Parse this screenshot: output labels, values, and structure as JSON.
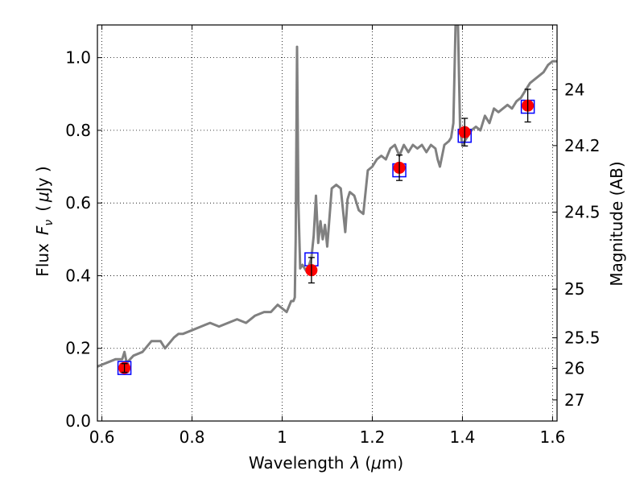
{
  "chart_data": {
    "type": "scatter",
    "xlabel_main": "Wavelength",
    "xlabel_symbol": "λ",
    "xlabel_unit_open": "(",
    "xlabel_unit_mu": "μ",
    "xlabel_unit_rest": "m)",
    "ylabel_main": "Flux",
    "ylabel_symbol": "F",
    "ylabel_sub": "ν",
    "ylabel_unit_open": "(",
    "ylabel_unit_mu": "μ",
    "ylabel_unit_rest": "Jy )",
    "ylabel_right": "Magnitude (AB)",
    "xlim": [
      0.59,
      1.61
    ],
    "ylim": [
      0.0,
      1.09
    ],
    "grid": true,
    "x_ticks": [
      {
        "value": 0.6,
        "label": "0.6"
      },
      {
        "value": 0.8,
        "label": "0.8"
      },
      {
        "value": 1.0,
        "label": "1"
      },
      {
        "value": 1.2,
        "label": "1.2"
      },
      {
        "value": 1.4,
        "label": "1.4"
      },
      {
        "value": 1.6,
        "label": "1.6"
      }
    ],
    "y_ticks": [
      {
        "value": 0.0,
        "label": "0.0"
      },
      {
        "value": 0.2,
        "label": "0.2"
      },
      {
        "value": 0.4,
        "label": "0.4"
      },
      {
        "value": 0.6,
        "label": "0.6"
      },
      {
        "value": 0.8,
        "label": "0.8"
      },
      {
        "value": 1.0,
        "label": "1.0"
      }
    ],
    "right_ticks": [
      {
        "flux": 0.912,
        "label": "24"
      },
      {
        "flux": 0.758,
        "label": "24.2"
      },
      {
        "flux": 0.575,
        "label": "24.5"
      },
      {
        "flux": 0.363,
        "label": "25"
      },
      {
        "flux": 0.229,
        "label": "25.5"
      },
      {
        "flux": 0.145,
        "label": "26"
      },
      {
        "flux": 0.058,
        "label": "27"
      }
    ],
    "series": [
      {
        "kind": "model-spectrum",
        "color": "#808080",
        "x": [
          0.59,
          0.61,
          0.63,
          0.645,
          0.65,
          0.655,
          0.67,
          0.69,
          0.71,
          0.73,
          0.74,
          0.76,
          0.77,
          0.78,
          0.8,
          0.82,
          0.84,
          0.86,
          0.88,
          0.9,
          0.92,
          0.94,
          0.96,
          0.975,
          0.99,
          1.0,
          1.01,
          1.02,
          1.025,
          1.028,
          1.03,
          1.033,
          1.036,
          1.04,
          1.045,
          1.05,
          1.055,
          1.06,
          1.065,
          1.07,
          1.075,
          1.08,
          1.085,
          1.09,
          1.095,
          1.1,
          1.11,
          1.12,
          1.13,
          1.14,
          1.145,
          1.15,
          1.16,
          1.17,
          1.18,
          1.19,
          1.2,
          1.21,
          1.22,
          1.23,
          1.24,
          1.25,
          1.26,
          1.27,
          1.28,
          1.29,
          1.3,
          1.31,
          1.32,
          1.33,
          1.34,
          1.345,
          1.35,
          1.36,
          1.37,
          1.375,
          1.38,
          1.385,
          1.39,
          1.395,
          1.4,
          1.41,
          1.42,
          1.43,
          1.44,
          1.45,
          1.46,
          1.47,
          1.48,
          1.49,
          1.5,
          1.51,
          1.52,
          1.53,
          1.54,
          1.55,
          1.56,
          1.57,
          1.58,
          1.59,
          1.6,
          1.61
        ],
        "y": [
          0.15,
          0.16,
          0.17,
          0.17,
          0.19,
          0.16,
          0.18,
          0.19,
          0.22,
          0.22,
          0.2,
          0.23,
          0.24,
          0.24,
          0.25,
          0.26,
          0.27,
          0.26,
          0.27,
          0.28,
          0.27,
          0.29,
          0.3,
          0.3,
          0.32,
          0.31,
          0.3,
          0.33,
          0.33,
          0.34,
          0.5,
          1.03,
          0.6,
          0.42,
          0.43,
          0.42,
          0.41,
          0.43,
          0.45,
          0.51,
          0.62,
          0.49,
          0.55,
          0.5,
          0.54,
          0.48,
          0.64,
          0.65,
          0.64,
          0.52,
          0.61,
          0.63,
          0.62,
          0.58,
          0.57,
          0.69,
          0.7,
          0.72,
          0.73,
          0.72,
          0.75,
          0.76,
          0.73,
          0.76,
          0.74,
          0.76,
          0.75,
          0.76,
          0.74,
          0.76,
          0.75,
          0.72,
          0.7,
          0.76,
          0.77,
          0.78,
          0.82,
          1.1,
          1.1,
          0.8,
          0.76,
          0.78,
          0.8,
          0.81,
          0.8,
          0.84,
          0.82,
          0.86,
          0.85,
          0.86,
          0.87,
          0.86,
          0.88,
          0.89,
          0.91,
          0.93,
          0.94,
          0.95,
          0.96,
          0.98,
          0.99,
          0.99
        ]
      },
      {
        "kind": "model-photometry",
        "marker": "open-square",
        "color": "#0000ff",
        "x": [
          0.65,
          1.065,
          1.26,
          1.405,
          1.545
        ],
        "y": [
          0.146,
          0.445,
          0.69,
          0.785,
          0.865
        ]
      },
      {
        "kind": "observed-photometry",
        "marker": "filled-circle",
        "color": "#ff0000",
        "x": [
          0.65,
          1.065,
          1.26,
          1.405,
          1.545
        ],
        "y": [
          0.146,
          0.415,
          0.697,
          0.795,
          0.868
        ],
        "yerr": [
          0.012,
          0.035,
          0.035,
          0.038,
          0.045
        ]
      }
    ]
  }
}
